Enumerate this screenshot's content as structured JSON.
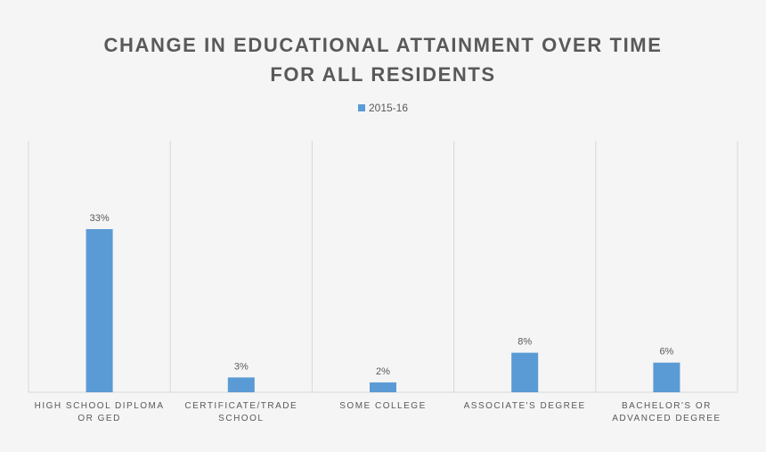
{
  "chart_data": {
    "type": "bar",
    "title": "CHANGE IN EDUCATIONAL ATTAINMENT OVER TIME",
    "subtitle": "FOR ALL RESIDENTS",
    "categories": [
      [
        "HIGH SCHOOL DIPLOMA",
        "OR GED"
      ],
      [
        "CERTIFICATE/TRADE",
        "SCHOOL"
      ],
      [
        "SOME COLLEGE"
      ],
      [
        "ASSOCIATE'S DEGREE"
      ],
      [
        "BACHELOR'S OR",
        "ADVANCED DEGREE"
      ]
    ],
    "series": [
      {
        "name": "2015-16",
        "values": [
          33,
          3,
          2,
          8,
          6
        ],
        "labels": [
          "33%",
          "3%",
          "2%",
          "8%",
          "6%"
        ],
        "color": "#5b9bd5"
      }
    ],
    "ylim": [
      0,
      40
    ],
    "grid": "vertical category dividers",
    "legend": "top-center"
  }
}
